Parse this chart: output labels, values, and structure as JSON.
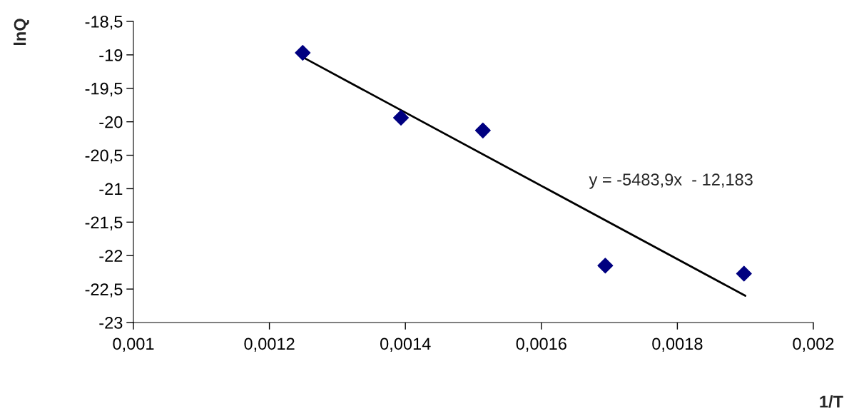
{
  "chart_data": {
    "type": "scatter",
    "xlabel": "1/T",
    "ylabel": "lnQ",
    "series": [
      {
        "color": "#000080",
        "marker": "diamond",
        "x": [
          0.001249,
          0.0013935,
          0.001514,
          0.001694,
          0.001898
        ],
        "values": [
          -18.97,
          -19.94,
          -20.13,
          -22.15,
          -22.27
        ]
      },
      {
        "type": "line",
        "color": "#000000",
        "marker": "none",
        "line_style": "solid",
        "x": [
          0.00125,
          0.0019
        ],
        "values": [
          -19.04,
          -22.6
        ]
      }
    ],
    "annotations": [
      "y = -5483,9x  - 12,183"
    ],
    "xlim": [
      0.001,
      0.002
    ],
    "xticks": [
      {
        "value": 0.001,
        "label": "0,001"
      },
      {
        "value": 0.0012,
        "label": "0,0012"
      },
      {
        "value": 0.0014,
        "label": "0,0014"
      },
      {
        "value": 0.0016,
        "label": "0,0016"
      },
      {
        "value": 0.0018,
        "label": "0,0018"
      },
      {
        "value": 0.002,
        "label": "0,002"
      }
    ],
    "ylim": [
      -23,
      -18.5
    ],
    "yticks": [
      {
        "value": -18.5,
        "label": "-18,5"
      },
      -19,
      {
        "value": -19.5,
        "label": "-19,5"
      },
      -20,
      {
        "value": -20.5,
        "label": "-20,5"
      },
      -21,
      {
        "value": -21.5,
        "label": "-21,5"
      },
      -22,
      {
        "value": -22.5,
        "label": "-22,5"
      },
      -23
    ],
    "grid": false,
    "legend": false
  }
}
